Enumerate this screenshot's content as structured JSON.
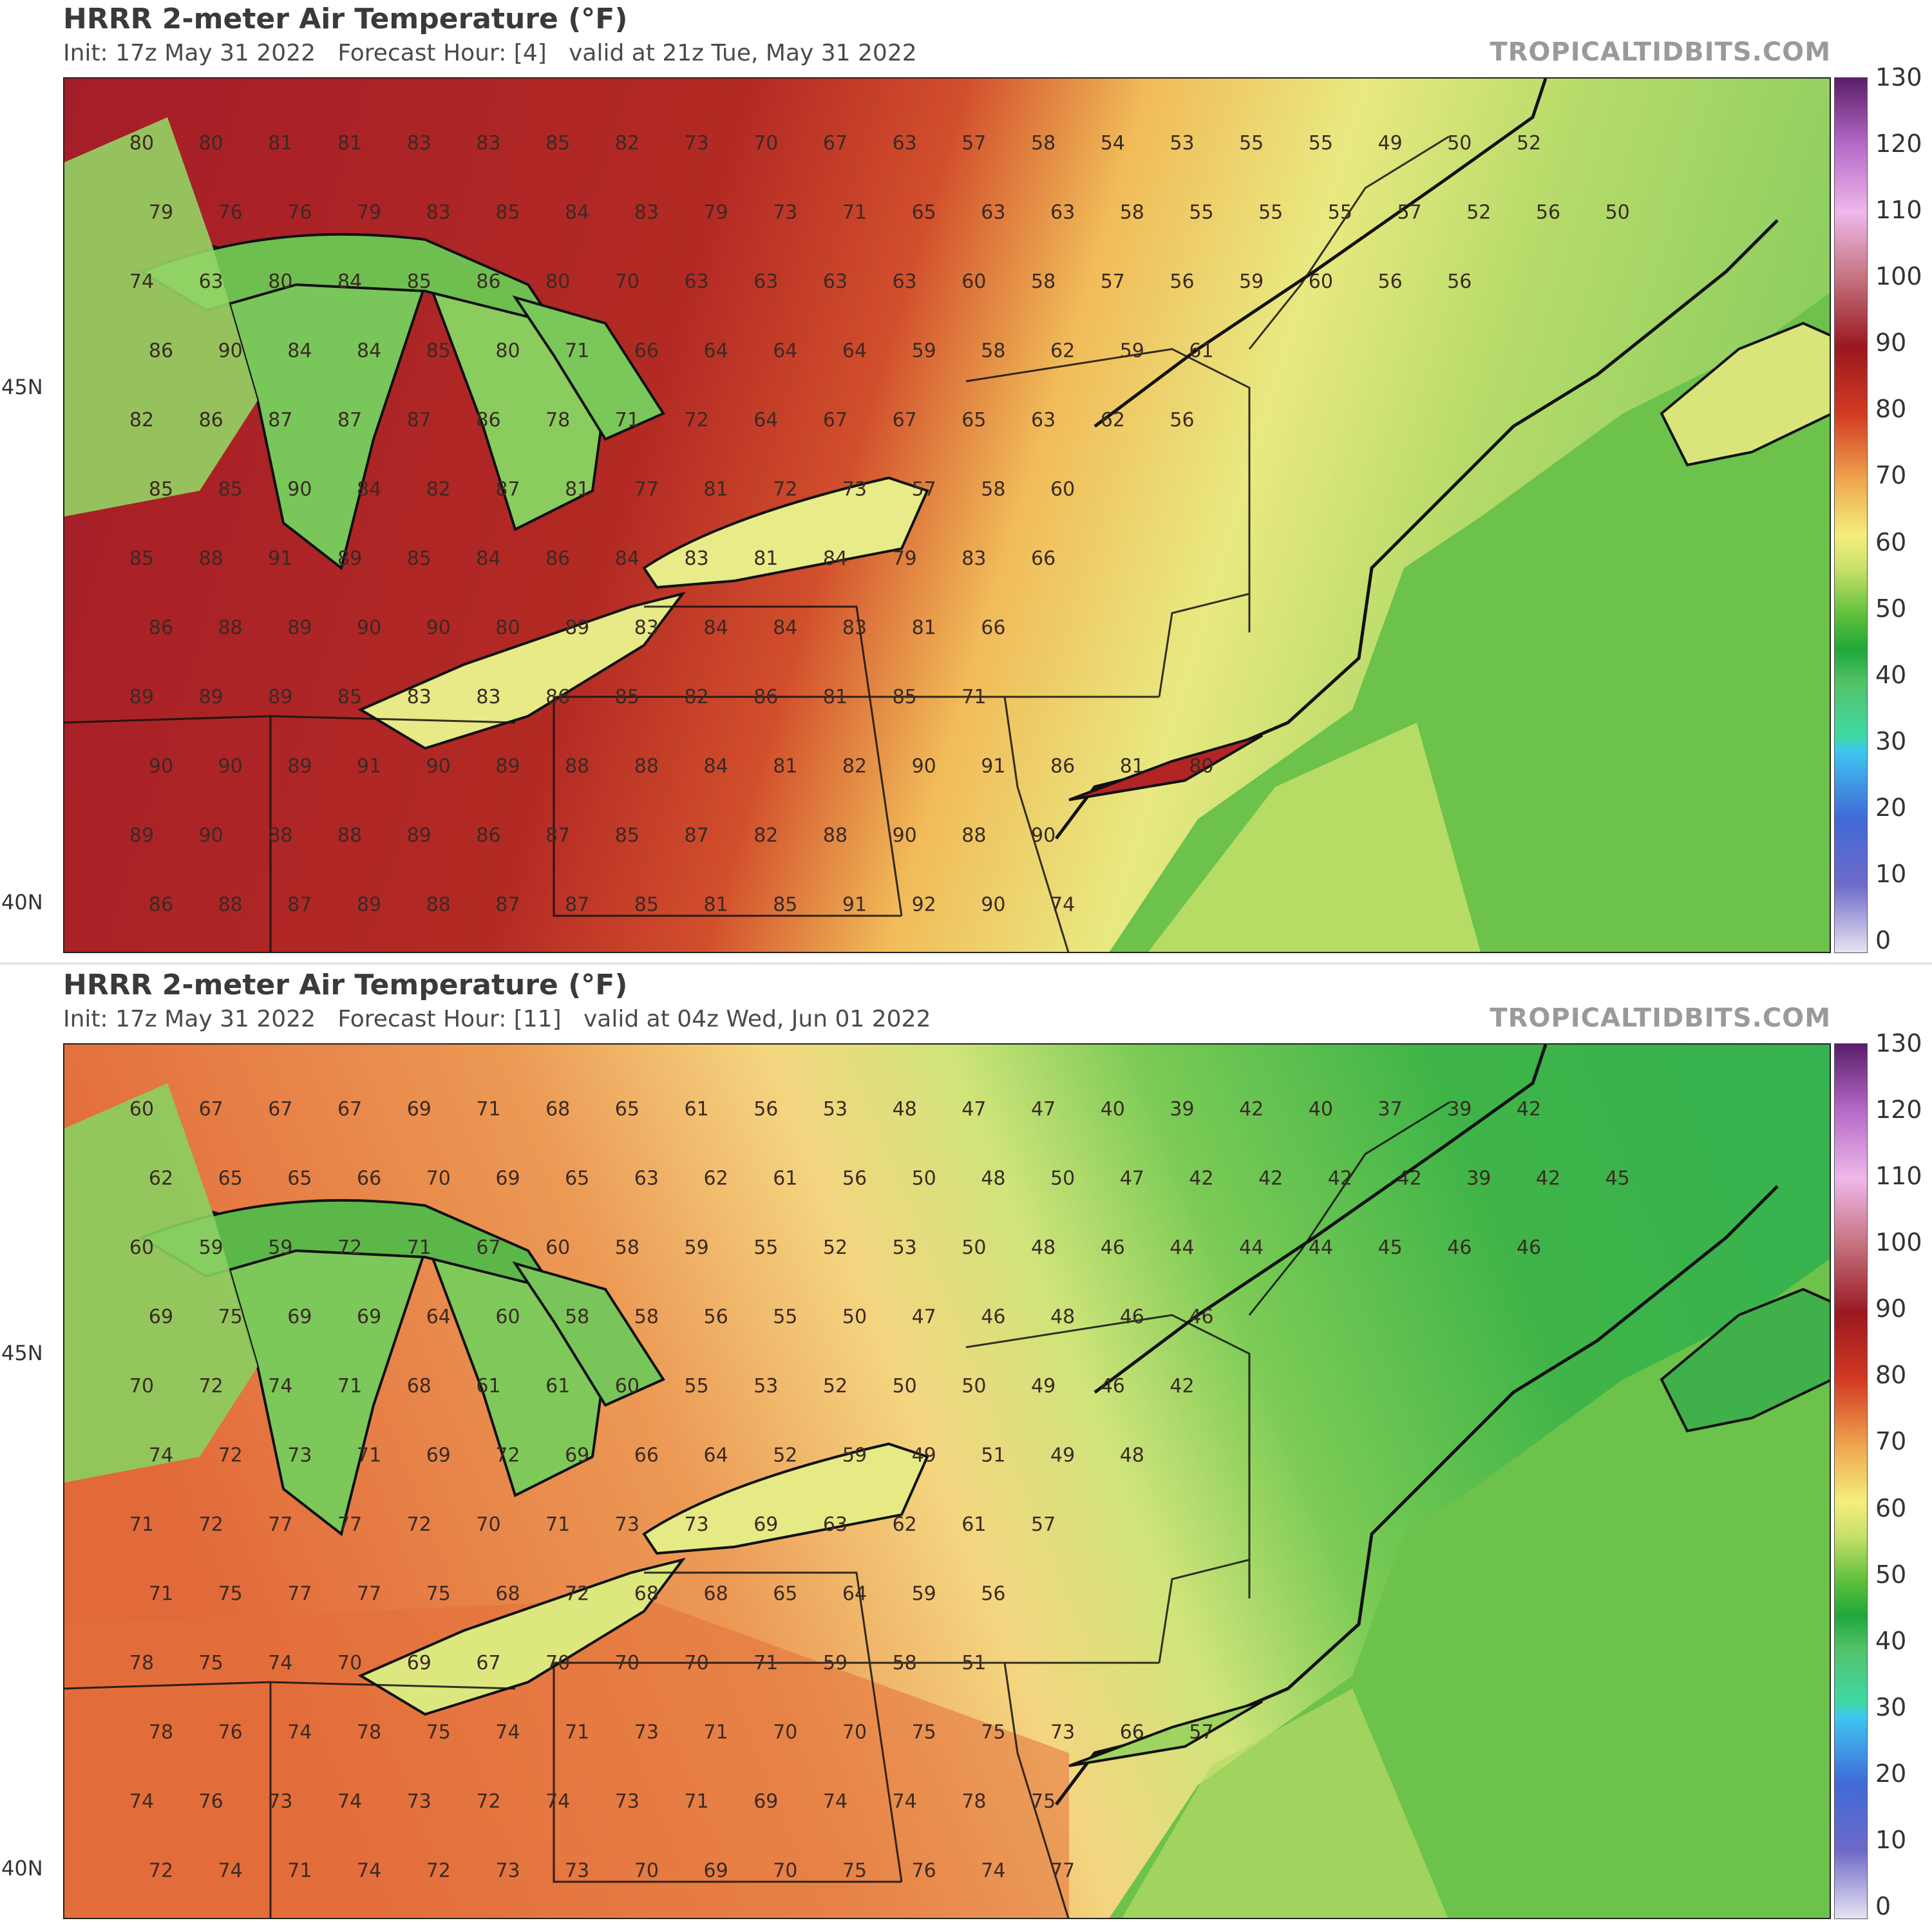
{
  "panels": [
    {
      "title": "HRRR 2-meter Air Temperature (°F)",
      "subtitle": "Init: 17z May 31 2022   Forecast Hour: [4]   valid at 21z Tue, May 31 2022",
      "site": "TROPICALTIDBITS.COM",
      "lat_labels": [
        "45N",
        "40N"
      ],
      "value_rows": [
        "80 80 81 81 83 83 85 82 73 70 67 63 57 58 54 53 55 55 49 50 52",
        "79 76 76 79 83 85 84 83 79 73 71 65 63 63 58 55 55 55 57 52 56 50",
        "74 63 80 84 85 86 80 70 63 63 63 63 60 58 57 56 59 60 56 56",
        "86 90 84 84 85 80 71 66 64 64 64 59 58 62 59 61",
        "82 86 87 87 87 86 78 71 72 64 67 67 65 63 62 56",
        "85 85 90 84 82 87 81 77 81 72 73 57 58 60",
        "85 88 91 89 85 84 86 84 83 81 84 79 83 66",
        "86 88 89 90 90 80 89 83 84 84 83 81 66",
        "89 89 89 85 83 83 86 85 82 86 81 85 71",
        "90 90 89 91 90 89 88 88 84 81 82 90 91 86 81 80",
        "89 90 88 88 89 86 87 85 87 82 88 90 88 90",
        "86 88 87 89 88 87 87 85 81 85 91 92 90 74"
      ]
    },
    {
      "title": "HRRR 2-meter Air Temperature (°F)",
      "subtitle": "Init: 17z May 31 2022   Forecast Hour: [11]   valid at 04z Wed, Jun 01 2022",
      "site": "TROPICALTIDBITS.COM",
      "lat_labels": [
        "45N",
        "40N"
      ],
      "value_rows": [
        "60 67 67 67 69 71 68 65 61 56 53 48 47 47 40 39 42 40 37 39 42",
        "62 65 65 66 70 69 65 63 62 61 56 50 48 50 47 42 42 42 42 39 42 45",
        "60 59 59 72 71 67 60 58 59 55 52 53 50 48 46 44 44 44 45 46 46",
        "69 75 69 69 64 60 58 58 56 55 50 47 46 48 46 46",
        "70 72 74 71 68 61 61 60 55 53 52 50 50 49 46 42",
        "74 72 73 71 69 72 69 66 64 52 59 49 51 49 48",
        "71 72 77 77 72 70 71 73 73 69 63 62 61 57",
        "71 75 77 77 75 68 72 68 68 65 64 59 56",
        "78 75 74 70 69 67 70 70 70 71 59 58 51",
        "78 76 74 78 75 74 71 73 71 70 70 75 75 73 66 57",
        "74 76 73 74 73 72 74 73 71 69 74 74 78 75",
        "72 74 71 74 72 73 73 70 69 70 75 76 74 77"
      ]
    }
  ],
  "colorbar": {
    "ticks": [
      "130",
      "120",
      "110",
      "100",
      "90",
      "80",
      "70",
      "60",
      "50",
      "40",
      "30",
      "20",
      "10",
      "0"
    ],
    "stops": [
      {
        "v": 0,
        "c": "#e8e4f2"
      },
      {
        "v": 10,
        "c": "#6e6ac8"
      },
      {
        "v": 20,
        "c": "#4169d8"
      },
      {
        "v": 30,
        "c": "#3ec6f0"
      },
      {
        "v": 32,
        "c": "#3fd9a6"
      },
      {
        "v": 40,
        "c": "#52c26a"
      },
      {
        "v": 45,
        "c": "#1fa83a"
      },
      {
        "v": 50,
        "c": "#5cbf3a"
      },
      {
        "v": 57,
        "c": "#c9e06a"
      },
      {
        "v": 62,
        "c": "#f4ef7a"
      },
      {
        "v": 70,
        "c": "#f0a850"
      },
      {
        "v": 80,
        "c": "#d33a22"
      },
      {
        "v": 90,
        "c": "#9a1820"
      },
      {
        "v": 100,
        "c": "#c4707c"
      },
      {
        "v": 110,
        "c": "#eeb8ea"
      },
      {
        "v": 120,
        "c": "#b66ac8"
      },
      {
        "v": 130,
        "c": "#5a1e6a"
      }
    ]
  }
}
